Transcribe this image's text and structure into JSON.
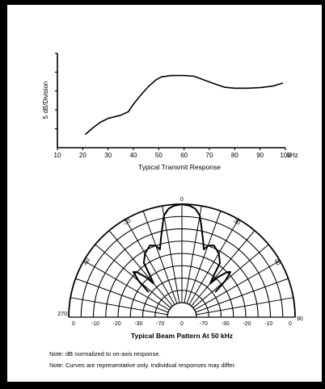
{
  "chart_data": [
    {
      "type": "line",
      "title": "Typical Transmit Response",
      "xlabel": "",
      "ylabel": "5 dB/Division",
      "x_unit": "kHz",
      "xlim": [
        10,
        100
      ],
      "x_ticks": [
        "10",
        "20",
        "30",
        "40",
        "50",
        "60",
        "70",
        "80",
        "90",
        "100"
      ],
      "ylim": [
        0,
        5
      ],
      "grid": false,
      "series": [
        {
          "x": [
            21,
            24,
            27,
            30,
            35,
            38,
            40,
            43,
            46,
            49,
            51,
            55,
            60,
            64,
            68,
            72,
            76,
            80,
            85,
            90,
            95,
            98,
            99
          ],
          "y": [
            0.7,
            1.05,
            1.35,
            1.55,
            1.72,
            1.9,
            2.3,
            2.8,
            3.25,
            3.6,
            3.75,
            3.82,
            3.82,
            3.78,
            3.58,
            3.38,
            3.2,
            3.15,
            3.15,
            3.18,
            3.26,
            3.38,
            3.42
          ]
        }
      ]
    },
    {
      "type": "polar",
      "title": "Typical Beam Pattern At 50 kHz",
      "angular_unit": "degrees",
      "angle_range": [
        -90,
        90
      ],
      "angle_labels_along_rim": [
        "0",
        "-30",
        "30",
        "-60",
        "60",
        "270",
        "90"
      ],
      "radial_tick_labels": [
        "0",
        "-10",
        "-20",
        "-30",
        "-70",
        "0",
        "-70",
        "-30",
        "-20",
        "-10",
        "0"
      ],
      "series": [
        {
          "angle": [
            -53,
            -50,
            -47,
            -45,
            -42,
            -40,
            -37,
            -35,
            -30,
            -24,
            -20,
            -18,
            -15,
            -12,
            -10,
            -7,
            -4,
            0,
            4,
            7,
            10,
            12,
            15,
            18,
            20,
            24,
            30,
            35,
            37,
            40,
            42,
            45,
            47,
            50,
            53
          ],
          "level_db": [
            -29,
            -23,
            -19,
            -20,
            -24,
            -28,
            -24,
            -19,
            -16,
            -14,
            -15,
            -17,
            -13,
            -8,
            -4,
            -1.5,
            -0.5,
            0,
            -0.5,
            -1.5,
            -4,
            -8,
            -13,
            -17,
            -15,
            -14,
            -16,
            -19,
            -24,
            -28,
            -24,
            -20,
            -19,
            -23,
            -29
          ]
        }
      ]
    }
  ],
  "notes": [
    "Note: dB normalized to on-axis response.",
    "Note: Curves are representative only. Individual responses may differ."
  ]
}
